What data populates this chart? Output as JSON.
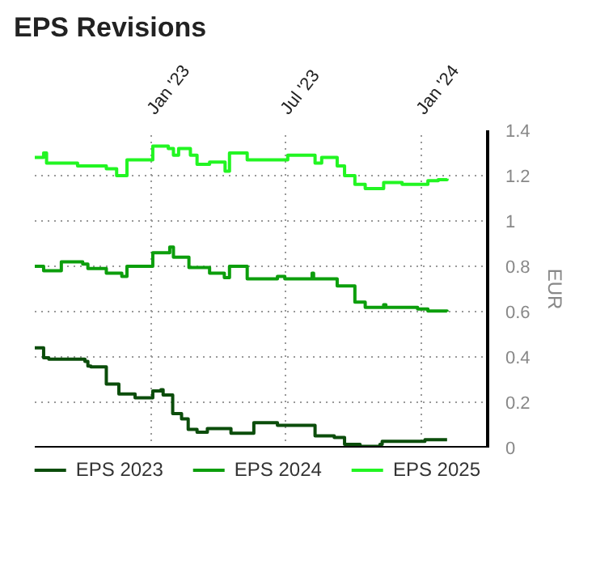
{
  "chart_data": {
    "type": "step",
    "title": "EPS Revisions",
    "ylabel": "EUR",
    "xlim": [
      "2022-07-27",
      "2024-04-01"
    ],
    "xticks": [
      {
        "value": "2023-01-01",
        "label": "Jan '23"
      },
      {
        "value": "2023-07-01",
        "label": "Jul '23"
      },
      {
        "value": "2024-01-01",
        "label": "Jan '24"
      }
    ],
    "ylim": [
      0,
      1.4
    ],
    "yticks": [
      0,
      0.2,
      0.4,
      0.6,
      0.8,
      1,
      1.2,
      1.4
    ],
    "grid": true,
    "legend": "bottom",
    "line_style": "solid",
    "series": [
      {
        "name": "EPS 2023",
        "color": "#0b4d0b",
        "x": [
          "2022-07-27",
          "2022-08-08",
          "2022-08-15",
          "2022-10-03",
          "2022-10-07",
          "2022-10-11",
          "2022-11-01",
          "2022-11-18",
          "2022-12-10",
          "2023-01-03",
          "2023-01-14",
          "2023-01-17",
          "2023-01-30",
          "2023-02-11",
          "2023-02-20",
          "2023-03-04",
          "2023-03-18",
          "2023-04-19",
          "2023-05-20",
          "2023-06-21",
          "2023-08-11",
          "2023-09-06",
          "2023-09-20",
          "2023-10-11",
          "2023-11-07",
          "2023-11-10",
          "2024-01-07",
          "2024-02-06"
        ],
        "values": [
          0.44,
          0.396,
          0.39,
          0.38,
          0.36,
          0.356,
          0.28,
          0.237,
          0.22,
          0.25,
          0.255,
          0.232,
          0.15,
          0.127,
          0.08,
          0.068,
          0.084,
          0.063,
          0.11,
          0.098,
          0.052,
          0.045,
          0.014,
          0.005,
          0.014,
          0.028,
          0.035,
          0.035
        ]
      },
      {
        "name": "EPS 2024",
        "color": "#0c9e0c",
        "x": [
          "2022-07-27",
          "2022-08-08",
          "2022-09-01",
          "2022-09-30",
          "2022-10-07",
          "2022-11-01",
          "2022-11-22",
          "2022-11-29",
          "2023-01-03",
          "2023-01-26",
          "2023-01-31",
          "2023-02-21",
          "2023-03-21",
          "2023-04-10",
          "2023-04-17",
          "2023-05-11",
          "2023-06-21",
          "2023-07-01",
          "2023-08-07",
          "2023-08-09",
          "2023-09-10",
          "2023-10-04",
          "2023-10-18",
          "2023-11-12",
          "2023-11-15",
          "2023-12-28",
          "2024-01-11",
          "2024-02-06"
        ],
        "values": [
          0.8,
          0.78,
          0.82,
          0.81,
          0.79,
          0.77,
          0.755,
          0.8,
          0.86,
          0.885,
          0.84,
          0.795,
          0.77,
          0.75,
          0.8,
          0.745,
          0.755,
          0.745,
          0.77,
          0.745,
          0.713,
          0.642,
          0.619,
          0.63,
          0.619,
          0.612,
          0.603,
          0.6
        ]
      },
      {
        "name": "EPS 2025",
        "color": "#22f522",
        "x": [
          "2022-07-27",
          "2022-08-08",
          "2022-08-12",
          "2022-09-23",
          "2022-11-01",
          "2022-11-15",
          "2022-11-29",
          "2023-01-03",
          "2023-01-24",
          "2023-01-31",
          "2023-02-07",
          "2023-02-23",
          "2023-03-04",
          "2023-03-21",
          "2023-04-11",
          "2023-04-17",
          "2023-05-11",
          "2023-07-05",
          "2023-08-11",
          "2023-08-20",
          "2023-09-10",
          "2023-09-20",
          "2023-10-04",
          "2023-10-18",
          "2023-11-12",
          "2023-12-07",
          "2024-01-11",
          "2024-01-25",
          "2024-02-06"
        ],
        "values": [
          1.28,
          1.3,
          1.255,
          1.243,
          1.23,
          1.2,
          1.27,
          1.33,
          1.32,
          1.29,
          1.32,
          1.29,
          1.25,
          1.26,
          1.22,
          1.3,
          1.27,
          1.29,
          1.255,
          1.28,
          1.243,
          1.2,
          1.162,
          1.143,
          1.17,
          1.162,
          1.178,
          1.182,
          1.187
        ]
      }
    ]
  }
}
